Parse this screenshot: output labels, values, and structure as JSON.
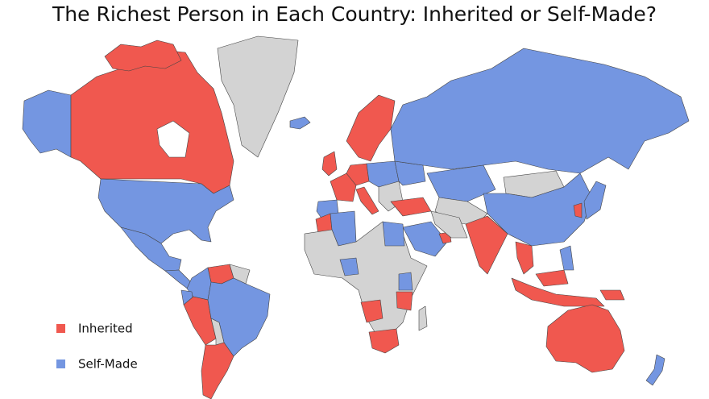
{
  "title": "The Richest Person in Each Country: Inherited or Self-Made?",
  "legend": [
    {
      "label": "Inherited",
      "color": "#f0584f"
    },
    {
      "label": "Self-Made",
      "color": "#7496e1"
    }
  ]
}
